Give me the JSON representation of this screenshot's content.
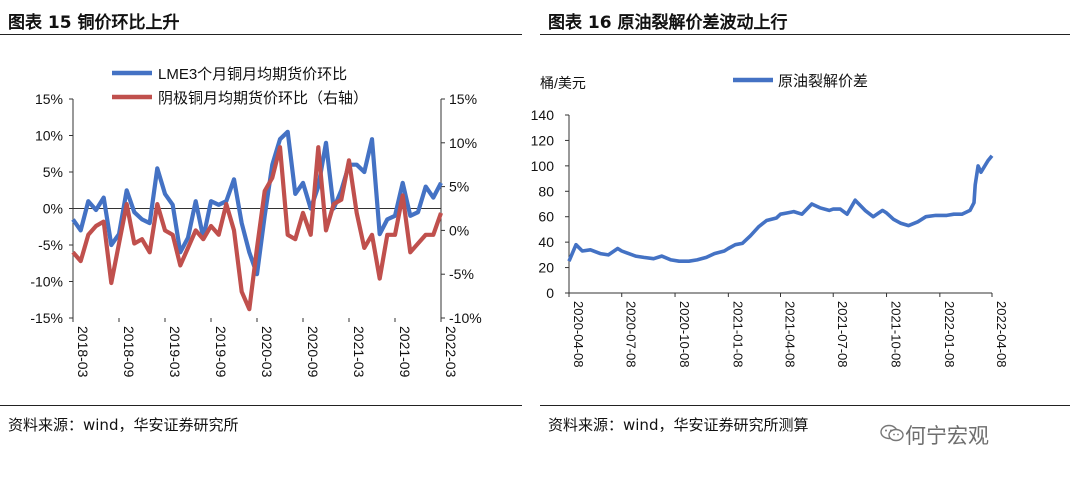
{
  "left": {
    "title": "图表 15 铜价环比上升",
    "source": "资料来源：wind，华安证券研究所",
    "chart_data": {
      "type": "line",
      "series": [
        {
          "name": "LME3个月铜月均期货价环比",
          "axis": "left",
          "color": "#4472C4",
          "x": [
            "2018-03",
            "2018-04",
            "2018-05",
            "2018-06",
            "2018-07",
            "2018-08",
            "2018-09",
            "2018-10",
            "2018-11",
            "2018-12",
            "2019-01",
            "2019-02",
            "2019-03",
            "2019-04",
            "2019-05",
            "2019-06",
            "2019-07",
            "2019-08",
            "2019-09",
            "2019-10",
            "2019-11",
            "2019-12",
            "2020-01",
            "2020-02",
            "2020-03",
            "2020-04",
            "2020-05",
            "2020-06",
            "2020-07",
            "2020-08",
            "2020-09",
            "2020-10",
            "2020-11",
            "2020-12",
            "2021-01",
            "2021-02",
            "2021-03",
            "2021-04",
            "2021-05",
            "2021-06",
            "2021-07",
            "2021-08",
            "2021-09",
            "2021-10",
            "2021-11",
            "2021-12",
            "2022-01",
            "2022-02",
            "2022-03"
          ],
          "values": [
            -1.5,
            -3,
            1,
            -0.2,
            1.5,
            -5,
            -3.5,
            2.5,
            -0.5,
            -1.5,
            -2,
            5.5,
            2,
            0.5,
            -6,
            -4,
            1,
            -4,
            1,
            0.5,
            1,
            4,
            -2,
            -6,
            -9,
            -1,
            6,
            9.5,
            10.5,
            2,
            3.5,
            0,
            3,
            9,
            0,
            2.5,
            6,
            6,
            5,
            9.5,
            -3.5,
            -1.5,
            -1,
            3.5,
            -1,
            -0.5,
            3,
            1.5,
            3.5
          ]
        },
        {
          "name": "阴极铜月均期货价环比（右轴）",
          "axis": "right",
          "color": "#C0504D",
          "x": [
            "2018-03",
            "2018-04",
            "2018-05",
            "2018-06",
            "2018-07",
            "2018-08",
            "2018-09",
            "2018-10",
            "2018-11",
            "2018-12",
            "2019-01",
            "2019-02",
            "2019-03",
            "2019-04",
            "2019-05",
            "2019-06",
            "2019-07",
            "2019-08",
            "2019-09",
            "2019-10",
            "2019-11",
            "2019-12",
            "2020-01",
            "2020-02",
            "2020-03",
            "2020-04",
            "2020-05",
            "2020-06",
            "2020-07",
            "2020-08",
            "2020-09",
            "2020-10",
            "2020-11",
            "2020-12",
            "2021-01",
            "2021-02",
            "2021-03",
            "2021-04",
            "2021-05",
            "2021-06",
            "2021-07",
            "2021-08",
            "2021-09",
            "2021-10",
            "2021-11",
            "2021-12",
            "2022-01",
            "2022-02",
            "2022-03"
          ],
          "values": [
            -2.5,
            -3.5,
            -0.5,
            0.5,
            1,
            -6,
            -1.5,
            3,
            -1.5,
            -1,
            -2.5,
            3,
            0,
            -0.5,
            -4,
            -2,
            0,
            -1,
            0.5,
            -0.5,
            3,
            0,
            -7,
            -9,
            -2,
            4.5,
            6,
            9.5,
            -0.5,
            -1,
            2,
            -0.5,
            9.5,
            0,
            3,
            3.5,
            8,
            2,
            -2,
            -0.5,
            -5.5,
            -0.5,
            -0.5,
            4,
            -2.5,
            -1.5,
            -0.5,
            -0.5,
            2
          ]
        }
      ],
      "y_left": {
        "ticks": [
          "15%",
          "10%",
          "5%",
          "0%",
          "-5%",
          "-10%",
          "-15%"
        ],
        "ylim": [
          -15,
          15
        ]
      },
      "y_right": {
        "ticks": [
          "15%",
          "10%",
          "5%",
          "0%",
          "-5%",
          "-10%"
        ],
        "ylim": [
          -10,
          15
        ]
      },
      "x_ticks": [
        "2018-03",
        "2018-09",
        "2019-03",
        "2019-09",
        "2020-03",
        "2020-09",
        "2021-03",
        "2021-09",
        "2022-03"
      ],
      "legend": "top-center",
      "grid": false
    }
  },
  "right": {
    "title": "图表 16 原油裂解价差波动上行",
    "source": "资料来源：wind，华安证券研究所测算",
    "chart_data": {
      "type": "line",
      "ylabel": "桶/美元",
      "series": [
        {
          "name": "原油裂解价差",
          "color": "#4472C4",
          "x": [
            "2020-04-08",
            "2020-04-20",
            "2020-05-01",
            "2020-05-15",
            "2020-06-01",
            "2020-06-15",
            "2020-07-01",
            "2020-07-08",
            "2020-07-20",
            "2020-08-01",
            "2020-08-15",
            "2020-09-01",
            "2020-09-15",
            "2020-10-01",
            "2020-10-15",
            "2020-11-01",
            "2020-11-15",
            "2020-12-01",
            "2020-12-15",
            "2021-01-01",
            "2021-01-08",
            "2021-01-20",
            "2021-02-01",
            "2021-02-15",
            "2021-03-01",
            "2021-03-15",
            "2021-04-01",
            "2021-04-08",
            "2021-04-20",
            "2021-05-01",
            "2021-05-15",
            "2021-06-01",
            "2021-06-15",
            "2021-07-01",
            "2021-07-08",
            "2021-07-20",
            "2021-08-01",
            "2021-08-15",
            "2021-09-01",
            "2021-09-15",
            "2021-10-01",
            "2021-10-08",
            "2021-10-20",
            "2021-11-01",
            "2021-11-15",
            "2021-12-01",
            "2021-12-15",
            "2022-01-01",
            "2022-01-08",
            "2022-01-20",
            "2022-02-01",
            "2022-02-15",
            "2022-03-01",
            "2022-03-08",
            "2022-03-10",
            "2022-03-15",
            "2022-03-20",
            "2022-04-01",
            "2022-04-08"
          ],
          "values": [
            25,
            38,
            33,
            34,
            31,
            30,
            35,
            33,
            31,
            29,
            28,
            27,
            29,
            26,
            25,
            25,
            26,
            28,
            31,
            33,
            35,
            38,
            39,
            45,
            52,
            57,
            59,
            62,
            63,
            64,
            62,
            70,
            67,
            65,
            66,
            66,
            62,
            73,
            65,
            60,
            65,
            63,
            58,
            55,
            53,
            56,
            60,
            61,
            61,
            61,
            62,
            62,
            65,
            71,
            85,
            100,
            95,
            104,
            108
          ]
        }
      ],
      "y_ticks": [
        "140",
        "120",
        "100",
        "80",
        "60",
        "40",
        "20",
        "0"
      ],
      "ylim": [
        0,
        140
      ],
      "x_ticks": [
        "2020-04-08",
        "2020-07-08",
        "2020-10-08",
        "2021-01-08",
        "2021-04-08",
        "2021-07-08",
        "2021-10-08",
        "2022-01-08",
        "2022-04-08"
      ],
      "legend": "top-center",
      "grid": false
    }
  },
  "watermark": {
    "text": "何宁宏观",
    "icon": "wechat-icon"
  }
}
